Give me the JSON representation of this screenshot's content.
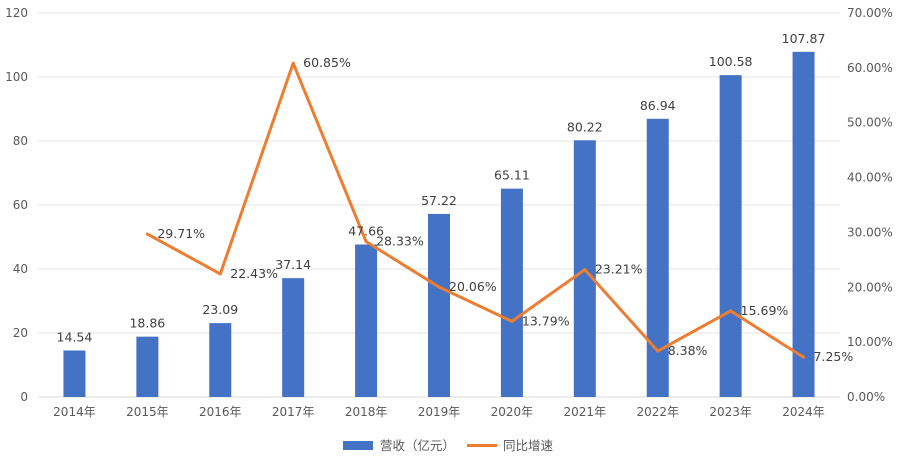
{
  "chart_data": {
    "type": "bar",
    "title": "",
    "categories": [
      "2014年",
      "2015年",
      "2016年",
      "2017年",
      "2018年",
      "2019年",
      "2020年",
      "2021年",
      "2022年",
      "2023年",
      "2024年"
    ],
    "series": [
      {
        "name": "营收（亿元）",
        "type": "bar",
        "axis": "left",
        "color": "#4472C4",
        "values": [
          14.54,
          18.86,
          23.09,
          37.14,
          47.66,
          57.22,
          65.11,
          80.22,
          86.94,
          100.58,
          107.87
        ],
        "labels": [
          "14.54",
          "18.86",
          "23.09",
          "37.14",
          "47.66",
          "57.22",
          "65.11",
          "80.22",
          "86.94",
          "100.58",
          "107.87"
        ]
      },
      {
        "name": "同比增速",
        "type": "line",
        "axis": "right",
        "color": "#ED7D31",
        "values": [
          null,
          29.71,
          22.43,
          60.85,
          28.33,
          20.06,
          13.79,
          23.21,
          8.38,
          15.69,
          7.25
        ],
        "labels": [
          null,
          "29.71%",
          "22.43%",
          "60.85%",
          "28.33%",
          "20.06%",
          "13.79%",
          "23.21%",
          "8.38%",
          "15.69%",
          "7.25%"
        ]
      }
    ],
    "y_left": {
      "min": 0,
      "max": 120,
      "step": 20,
      "ticks": [
        "0",
        "20",
        "40",
        "60",
        "80",
        "100",
        "120"
      ]
    },
    "y_right": {
      "min": 0,
      "max": 70,
      "step": 10,
      "ticks": [
        "0.00%",
        "10.00%",
        "20.00%",
        "30.00%",
        "40.00%",
        "50.00%",
        "60.00%",
        "70.00%"
      ]
    },
    "xlabel": "",
    "ylabel": "",
    "grid": true,
    "legend": {
      "position": "bottom",
      "entries": [
        "营收（亿元）",
        "同比增速"
      ]
    }
  }
}
